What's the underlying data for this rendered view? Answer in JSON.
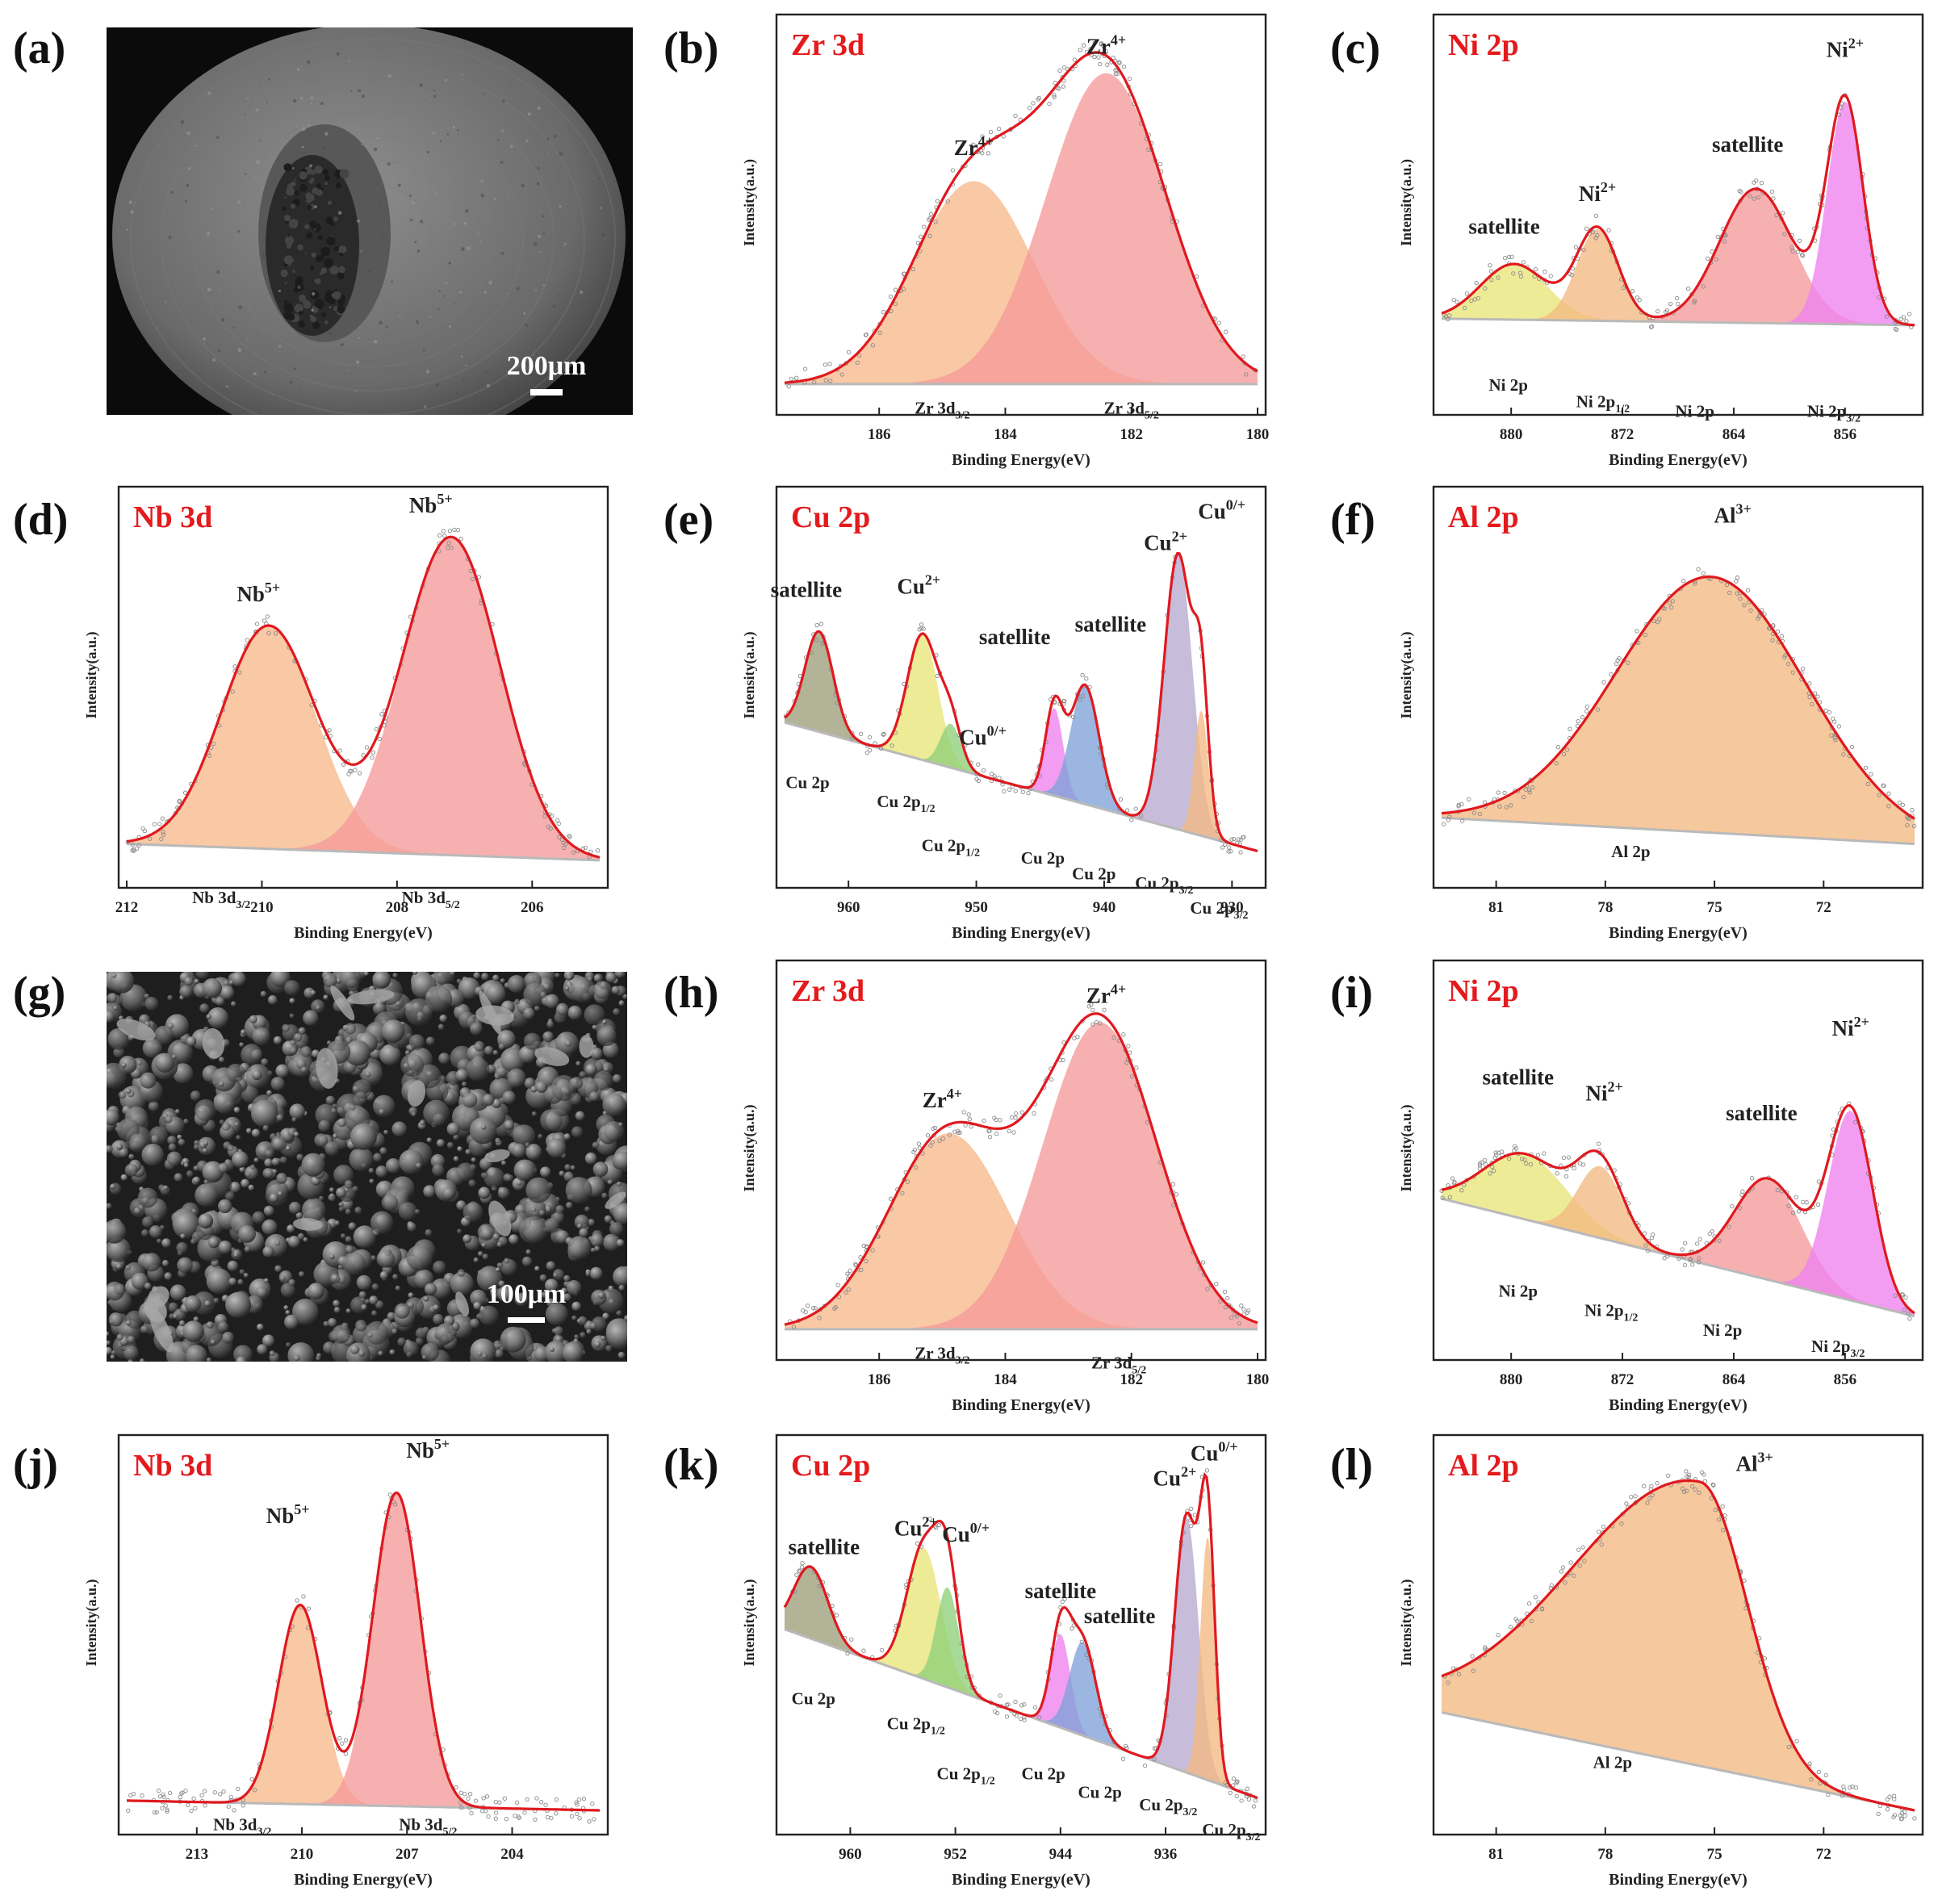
{
  "panel_labels": [
    "(a)",
    "(b)",
    "(c)",
    "(d)",
    "(e)",
    "(f)",
    "(g)",
    "(h)",
    "(i)",
    "(j)",
    "(k)",
    "(l)"
  ],
  "colors": {
    "title_red": "#e41a1c",
    "envelope": "#e0191f",
    "baseline": "#b9b9b9",
    "orange_fill": "#f7b98a",
    "pink_fill": "#f59a9a",
    "yellow_fill": "#e9e57a",
    "magenta_fill": "#ee82ee",
    "olive_fill": "#9e9e7a",
    "green_fill": "#8fd07a",
    "blue_fill": "#7fa3d9",
    "lavender_fill": "#b7a9cf",
    "peach_fill": "#f4b982"
  },
  "sem_images": [
    {
      "panel": "(a)",
      "scale_bar": "200μm",
      "style": "particle-with-cavity"
    },
    {
      "panel": "(g)",
      "scale_bar": "100μm",
      "style": "powder-field"
    }
  ],
  "chart_data": [
    {
      "panel": "(b)",
      "type": "area",
      "title": "Zr 3d",
      "xlabel": "Binding Energy(eV)",
      "ylabel": "Intensity(a.u.)",
      "xlim": [
        187.5,
        180
      ],
      "ticks": [
        186,
        184,
        182,
        180
      ],
      "ylim": [
        0,
        1.1
      ],
      "baseline": [
        0.02,
        0.02
      ],
      "peaks": [
        {
          "name": "Zr 3d3/2",
          "center": 184.5,
          "height": 0.62,
          "width": 0.95,
          "color": "orange_fill"
        },
        {
          "name": "Zr 3d5/2",
          "center": 182.4,
          "height": 0.95,
          "width": 0.95,
          "color": "pink_fill"
        }
      ],
      "annotations": [
        {
          "base": "Zr",
          "sup": "4+",
          "x": 184.5,
          "y": 0.72
        },
        {
          "base": "Zr",
          "sup": "4+",
          "x": 182.4,
          "y": 1.03
        }
      ],
      "component_labels": [
        {
          "base": "Zr 3d",
          "sub": "3/2",
          "x": 185.0,
          "y": -0.07
        },
        {
          "base": "Zr 3d",
          "sub": "5/2",
          "x": 182.0,
          "y": -0.07
        }
      ]
    },
    {
      "panel": "(c)",
      "type": "area",
      "title": "Ni 2p",
      "xlabel": "Binding Energy(eV)",
      "ylabel": "Intensity(a.u.)",
      "xlim": [
        885,
        851
      ],
      "ticks": [
        880,
        872,
        864,
        856
      ],
      "ylim": [
        0,
        1.1
      ],
      "baseline": [
        0.22,
        0.2
      ],
      "peaks": [
        {
          "name": "Ni 2p satellite",
          "center": 879.8,
          "height": 0.17,
          "width": 2.4,
          "color": "yellow_fill"
        },
        {
          "name": "Ni 2p1/2",
          "center": 873.8,
          "height": 0.28,
          "width": 1.5,
          "color": "peach_fill"
        },
        {
          "name": "Ni 2p satellite",
          "center": 862.4,
          "height": 0.41,
          "width": 2.6,
          "color": "pink_fill"
        },
        {
          "name": "Ni 2p3/2",
          "center": 856.0,
          "height": 0.68,
          "width": 1.3,
          "color": "magenta_fill"
        }
      ],
      "annotations": [
        {
          "base": "satellite",
          "sup": "",
          "x": 880.5,
          "y": 0.48
        },
        {
          "base": "Ni",
          "sup": "2+",
          "x": 873.8,
          "y": 0.58
        },
        {
          "base": "satellite",
          "sup": "",
          "x": 863.0,
          "y": 0.73
        },
        {
          "base": "Ni",
          "sup": "2+",
          "x": 856.0,
          "y": 1.02
        }
      ],
      "component_labels": [
        {
          "base": "Ni 2p",
          "sub": "",
          "x": 880.2,
          "y": 0.0
        },
        {
          "base": "Ni 2p",
          "sub": "1/2",
          "x": 873.4,
          "y": -0.05
        },
        {
          "base": "Ni 2p",
          "sub": "",
          "x": 866.8,
          "y": -0.08
        },
        {
          "base": "Ni 2p",
          "sub": "3/2",
          "x": 856.8,
          "y": -0.08
        }
      ]
    },
    {
      "panel": "(d)",
      "type": "area",
      "title": "Nb 3d",
      "xlabel": "Binding Energy(eV)",
      "ylabel": "Intensity(a.u.)",
      "xlim": [
        212,
        205
      ],
      "ticks": [
        212,
        210,
        208,
        206
      ],
      "ylim": [
        0,
        1.1
      ],
      "baseline": [
        0.06,
        0.01
      ],
      "peaks": [
        {
          "name": "Nb 3d3/2",
          "center": 209.9,
          "height": 0.68,
          "width": 0.7,
          "color": "orange_fill"
        },
        {
          "name": "Nb 3d5/2",
          "center": 207.2,
          "height": 0.97,
          "width": 0.72,
          "color": "pink_fill"
        }
      ],
      "annotations": [
        {
          "base": "Nb",
          "sup": "5+",
          "x": 210.05,
          "y": 0.8
        },
        {
          "base": "Nb",
          "sup": "5+",
          "x": 207.5,
          "y": 1.07
        }
      ],
      "component_labels": [
        {
          "base": "Nb 3d",
          "sub": "3/2",
          "x": 210.6,
          "y": -0.12
        },
        {
          "base": "Nb 3d",
          "sub": "5/2",
          "x": 207.5,
          "y": -0.12
        }
      ]
    },
    {
      "panel": "(e)",
      "type": "area",
      "title": "Cu 2p",
      "xlabel": "Binding Energy(eV)",
      "ylabel": "Intensity(a.u.)",
      "xlim": [
        965,
        928
      ],
      "ticks": [
        960,
        950,
        940,
        930
      ],
      "ylim": [
        0,
        1.15
      ],
      "baseline": [
        0.45,
        0.04
      ],
      "peaks": [
        {
          "name": "Cu 2p satellite",
          "center": 962.3,
          "height": 0.32,
          "width": 1.1,
          "color": "olive_fill"
        },
        {
          "name": "Cu 2p1/2",
          "center": 954.2,
          "height": 0.4,
          "width": 1.2,
          "color": "yellow_fill"
        },
        {
          "name": "Cu 2p1/2",
          "center": 952.0,
          "height": 0.14,
          "width": 0.8,
          "color": "green_fill"
        },
        {
          "name": "Cu 2p satellite",
          "center": 943.9,
          "height": 0.28,
          "width": 0.7,
          "color": "magenta_fill"
        },
        {
          "name": "Cu 2p satellite",
          "center": 941.5,
          "height": 0.38,
          "width": 1.1,
          "color": "blue_fill"
        },
        {
          "name": "Cu 2p3/2",
          "center": 934.2,
          "height": 0.88,
          "width": 1.1,
          "color": "lavender_fill"
        },
        {
          "name": "Cu 2p3/2",
          "center": 932.4,
          "height": 0.4,
          "width": 0.55,
          "color": "peach_fill"
        }
      ],
      "annotations": [
        {
          "base": "satellite",
          "sup": "",
          "x": 963.3,
          "y": 0.85
        },
        {
          "base": "Cu",
          "sup": "2+",
          "x": 954.5,
          "y": 0.86
        },
        {
          "base": "Cu",
          "sup": "0/+",
          "x": 949.5,
          "y": 0.38
        },
        {
          "base": "satellite",
          "sup": "",
          "x": 947.0,
          "y": 0.7
        },
        {
          "base": "satellite",
          "sup": "",
          "x": 939.5,
          "y": 0.74
        },
        {
          "base": "Cu",
          "sup": "2+",
          "x": 935.2,
          "y": 1.0
        },
        {
          "base": "Cu",
          "sup": "0/+",
          "x": 930.8,
          "y": 1.1
        }
      ],
      "component_labels": [
        {
          "base": "Cu 2p",
          "sub": "",
          "x": 963.2,
          "y": 0.24
        },
        {
          "base": "Cu 2p",
          "sub": "1/2",
          "x": 955.5,
          "y": 0.18
        },
        {
          "base": "Cu 2p",
          "sub": "1/2",
          "x": 952.0,
          "y": 0.04
        },
        {
          "base": "Cu 2p",
          "sub": "",
          "x": 944.8,
          "y": 0.0
        },
        {
          "base": "Cu 2p",
          "sub": "",
          "x": 940.8,
          "y": -0.05
        },
        {
          "base": "Cu 2p",
          "sub": "3/2",
          "x": 935.3,
          "y": -0.08
        },
        {
          "base": "Cu 2p",
          "sub": "3/2",
          "x": 931.0,
          "y": -0.16
        }
      ]
    },
    {
      "panel": "(f)",
      "type": "area",
      "title": "Al 2p",
      "xlabel": "Binding Energy(eV)",
      "ylabel": "Intensity(a.u.)",
      "xlim": [
        82.5,
        69.5
      ],
      "ticks": [
        81,
        78,
        75,
        72
      ],
      "ylim": [
        0,
        1.1
      ],
      "baseline": [
        0.14,
        0.06
      ],
      "peaks": [
        {
          "name": "Al 2p",
          "center": 75.1,
          "height": 0.78,
          "width": 2.6,
          "color": "peach_fill"
        }
      ],
      "annotations": [
        {
          "base": "Al",
          "sup": "3+",
          "x": 74.5,
          "y": 1.04
        }
      ],
      "component_labels": [
        {
          "base": "Al 2p",
          "sub": "",
          "x": 77.3,
          "y": 0.02
        }
      ]
    },
    {
      "panel": "(h)",
      "type": "area",
      "title": "Zr 3d",
      "xlabel": "Binding Energy(eV)",
      "ylabel": "Intensity(a.u.)",
      "xlim": [
        187.5,
        180
      ],
      "ticks": [
        186,
        184,
        182,
        180
      ],
      "ylim": [
        0,
        1.1
      ],
      "baseline": [
        0.02,
        0.02
      ],
      "peaks": [
        {
          "name": "Zr 3d3/2",
          "center": 184.9,
          "height": 0.6,
          "width": 0.95,
          "color": "orange_fill"
        },
        {
          "name": "Zr 3d5/2",
          "center": 182.5,
          "height": 0.94,
          "width": 0.9,
          "color": "pink_fill"
        }
      ],
      "annotations": [
        {
          "base": "Zr",
          "sup": "4+",
          "x": 185.0,
          "y": 0.7
        },
        {
          "base": "Zr",
          "sup": "4+",
          "x": 182.4,
          "y": 1.02
        }
      ],
      "component_labels": [
        {
          "base": "Zr 3d",
          "sub": "3/2",
          "x": 185.0,
          "y": -0.07
        },
        {
          "base": "Zr 3d",
          "sub": "5/2",
          "x": 182.2,
          "y": -0.1
        }
      ]
    },
    {
      "panel": "(i)",
      "type": "area",
      "title": "Ni 2p",
      "xlabel": "Binding Energy(eV)",
      "ylabel": "Intensity(a.u.)",
      "xlim": [
        885,
        851
      ],
      "ticks": [
        880,
        872,
        864,
        856
      ],
      "ylim": [
        0,
        1.1
      ],
      "baseline": [
        0.42,
        0.06
      ],
      "peaks": [
        {
          "name": "Ni 2p satellite",
          "center": 879.0,
          "height": 0.2,
          "width": 3.0,
          "color": "yellow_fill"
        },
        {
          "name": "Ni 2p1/2",
          "center": 873.6,
          "height": 0.22,
          "width": 1.6,
          "color": "peach_fill"
        },
        {
          "name": "Ni 2p satellite",
          "center": 861.5,
          "height": 0.31,
          "width": 2.4,
          "color": "pink_fill"
        },
        {
          "name": "Ni 2p3/2",
          "center": 855.6,
          "height": 0.58,
          "width": 1.6,
          "color": "magenta_fill"
        }
      ],
      "annotations": [
        {
          "base": "satellite",
          "sup": "",
          "x": 879.5,
          "y": 0.77
        },
        {
          "base": "Ni",
          "sup": "2+",
          "x": 873.3,
          "y": 0.72
        },
        {
          "base": "satellite",
          "sup": "",
          "x": 862.0,
          "y": 0.66
        },
        {
          "base": "Ni",
          "sup": "2+",
          "x": 855.6,
          "y": 0.92
        }
      ],
      "component_labels": [
        {
          "base": "Ni 2p",
          "sub": "",
          "x": 879.5,
          "y": 0.12
        },
        {
          "base": "Ni 2p",
          "sub": "1/2",
          "x": 872.8,
          "y": 0.06
        },
        {
          "base": "Ni 2p",
          "sub": "",
          "x": 864.8,
          "y": 0.0
        },
        {
          "base": "Ni 2p",
          "sub": "3/2",
          "x": 856.5,
          "y": -0.05
        }
      ]
    },
    {
      "panel": "(j)",
      "type": "area",
      "title": "Nb 3d",
      "xlabel": "Binding Energy(eV)",
      "ylabel": "Intensity(a.u.)",
      "xlim": [
        215,
        201.5
      ],
      "ticks": [
        213,
        210,
        207,
        204
      ],
      "ylim": [
        0,
        1.1
      ],
      "baseline": [
        0.03,
        0.0
      ],
      "peaks": [
        {
          "name": "Nb 3d3/2",
          "center": 210.05,
          "height": 0.61,
          "width": 0.62,
          "color": "orange_fill"
        },
        {
          "name": "Nb 3d5/2",
          "center": 207.3,
          "height": 0.96,
          "width": 0.68,
          "color": "pink_fill"
        }
      ],
      "annotations": [
        {
          "base": "Nb",
          "sup": "5+",
          "x": 210.4,
          "y": 0.88
        },
        {
          "base": "Nb",
          "sup": "5+",
          "x": 206.4,
          "y": 1.08
        }
      ],
      "component_labels": [
        {
          "base": "Nb 3d",
          "sub": "3/2",
          "x": 211.7,
          "y": -0.06
        },
        {
          "base": "Nb 3d",
          "sub": "5/2",
          "x": 206.4,
          "y": -0.06
        }
      ]
    },
    {
      "panel": "(k)",
      "type": "area",
      "title": "Cu 2p",
      "xlabel": "Binding Energy(eV)",
      "ylabel": "Intensity(a.u.)",
      "xlim": [
        965,
        929
      ],
      "ticks": [
        960,
        952,
        944,
        936
      ],
      "ylim": [
        0,
        1.15
      ],
      "baseline": [
        0.58,
        0.04
      ],
      "peaks": [
        {
          "name": "Cu 2p satellite",
          "center": 963.0,
          "height": 0.23,
          "width": 1.3,
          "color": "olive_fill"
        },
        {
          "name": "Cu 2p1/2",
          "center": 954.4,
          "height": 0.42,
          "width": 1.3,
          "color": "yellow_fill"
        },
        {
          "name": "Cu 2p1/2",
          "center": 952.6,
          "height": 0.32,
          "width": 0.85,
          "color": "green_fill"
        },
        {
          "name": "Cu 2p satellite",
          "center": 944.0,
          "height": 0.3,
          "width": 0.75,
          "color": "magenta_fill"
        },
        {
          "name": "Cu 2p satellite",
          "center": 942.3,
          "height": 0.3,
          "width": 1.0,
          "color": "blue_fill"
        },
        {
          "name": "Cu 2p3/2",
          "center": 934.4,
          "height": 0.82,
          "width": 0.9,
          "color": "lavender_fill"
        },
        {
          "name": "Cu 2p3/2",
          "center": 932.8,
          "height": 0.78,
          "width": 0.55,
          "color": "peach_fill"
        }
      ],
      "annotations": [
        {
          "base": "satellite",
          "sup": "",
          "x": 962.0,
          "y": 0.82
        },
        {
          "base": "Cu",
          "sup": "2+",
          "x": 955.0,
          "y": 0.88
        },
        {
          "base": "Cu",
          "sup": "0/+",
          "x": 951.2,
          "y": 0.86
        },
        {
          "base": "satellite",
          "sup": "",
          "x": 944.0,
          "y": 0.68
        },
        {
          "base": "satellite",
          "sup": "",
          "x": 939.5,
          "y": 0.6
        },
        {
          "base": "Cu",
          "sup": "2+",
          "x": 935.3,
          "y": 1.04
        },
        {
          "base": "Cu",
          "sup": "0/+",
          "x": 932.3,
          "y": 1.12
        }
      ],
      "component_labels": [
        {
          "base": "Cu 2p",
          "sub": "",
          "x": 962.8,
          "y": 0.34
        },
        {
          "base": "Cu 2p",
          "sub": "1/2",
          "x": 955.0,
          "y": 0.26
        },
        {
          "base": "Cu 2p",
          "sub": "1/2",
          "x": 951.2,
          "y": 0.1
        },
        {
          "base": "Cu 2p",
          "sub": "",
          "x": 945.3,
          "y": 0.1
        },
        {
          "base": "Cu 2p",
          "sub": "",
          "x": 941.0,
          "y": 0.04
        },
        {
          "base": "Cu 2p",
          "sub": "3/2",
          "x": 935.8,
          "y": 0.0
        },
        {
          "base": "Cu 2p",
          "sub": "3/2",
          "x": 931.0,
          "y": -0.08
        }
      ]
    },
    {
      "panel": "(l)",
      "type": "area",
      "title": "Al 2p",
      "xlabel": "Binding Energy(eV)",
      "ylabel": "Intensity(a.u.)",
      "xlim": [
        82.5,
        69.5
      ],
      "ticks": [
        81,
        78,
        75,
        72
      ],
      "ylim": [
        0,
        1.1
      ],
      "baseline": [
        0.3,
        0.0
      ],
      "peaks": [
        {
          "name": "Al 2p",
          "center": 75.4,
          "height": 0.87,
          "width": 3.5,
          "right_width": 1.3,
          "color": "peach_fill"
        }
      ],
      "annotations": [
        {
          "base": "Al",
          "sup": "3+",
          "x": 73.9,
          "y": 1.04
        }
      ],
      "component_labels": [
        {
          "base": "Al 2p",
          "sub": "",
          "x": 77.8,
          "y": 0.13
        }
      ]
    }
  ]
}
